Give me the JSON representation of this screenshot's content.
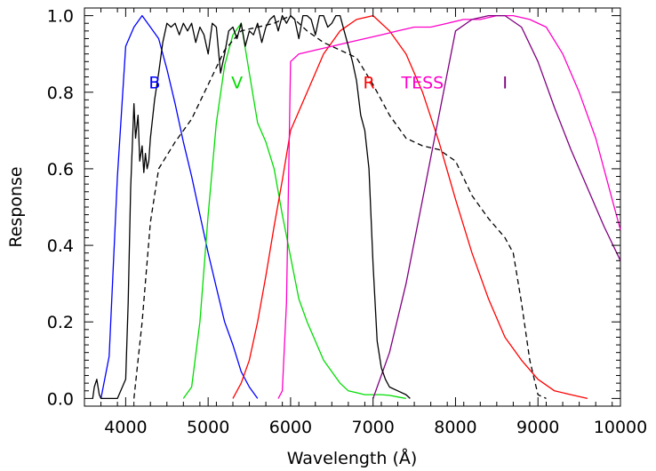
{
  "chart_data": {
    "type": "line",
    "xlabel": "Wavelength (Å)",
    "ylabel": "Response",
    "xlim": [
      3500,
      10000
    ],
    "ylim": [
      -0.02,
      1.02
    ],
    "x_ticks": [
      4000,
      5000,
      6000,
      7000,
      8000,
      9000,
      10000
    ],
    "y_ticks": [
      0.0,
      0.2,
      0.4,
      0.6,
      0.8,
      1.0
    ],
    "x_tick_labels": [
      "4000",
      "5000",
      "6000",
      "7000",
      "8000",
      "9000",
      "10000"
    ],
    "y_tick_labels": [
      "0.0",
      "0.2",
      "0.4",
      "0.6",
      "0.8",
      "1.0"
    ],
    "grid": false,
    "series": [
      {
        "name": "B",
        "color": "#0000ff",
        "dash": "solid",
        "x": [
          3700,
          3800,
          3900,
          4000,
          4100,
          4200,
          4300,
          4400,
          4500,
          4600,
          4700,
          4800,
          4900,
          5000,
          5100,
          5200,
          5300,
          5400,
          5500,
          5600
        ],
        "y": [
          0.0,
          0.11,
          0.58,
          0.92,
          0.97,
          1.0,
          0.97,
          0.94,
          0.86,
          0.77,
          0.67,
          0.58,
          0.48,
          0.38,
          0.29,
          0.2,
          0.14,
          0.07,
          0.03,
          0.0
        ]
      },
      {
        "name": "V",
        "color": "#00dd00",
        "dash": "solid",
        "x": [
          4700,
          4800,
          4900,
          5000,
          5100,
          5200,
          5300,
          5400,
          5500,
          5600,
          5700,
          5800,
          5900,
          6000,
          6100,
          6200,
          6300,
          6400,
          6500,
          6600,
          6700,
          6800,
          6900,
          7000,
          7100,
          7200,
          7300,
          7400
        ],
        "y": [
          0.0,
          0.03,
          0.2,
          0.48,
          0.72,
          0.87,
          0.95,
          0.98,
          0.85,
          0.72,
          0.67,
          0.6,
          0.48,
          0.37,
          0.26,
          0.2,
          0.15,
          0.1,
          0.07,
          0.04,
          0.02,
          0.015,
          0.01,
          0.01,
          0.01,
          0.008,
          0.004,
          0.0
        ]
      },
      {
        "name": "R",
        "color": "#ff0000",
        "dash": "solid",
        "x": [
          5300,
          5400,
          5500,
          5600,
          5700,
          5800,
          5900,
          6000,
          6200,
          6400,
          6600,
          6800,
          7000,
          7200,
          7400,
          7600,
          7800,
          8000,
          8200,
          8400,
          8600,
          8800,
          9000,
          9200,
          9400,
          9600
        ],
        "y": [
          0.0,
          0.04,
          0.1,
          0.2,
          0.32,
          0.45,
          0.57,
          0.7,
          0.8,
          0.9,
          0.96,
          0.99,
          1.0,
          0.96,
          0.9,
          0.8,
          0.67,
          0.52,
          0.38,
          0.26,
          0.16,
          0.1,
          0.05,
          0.02,
          0.01,
          0.0
        ]
      },
      {
        "name": "TESS",
        "color": "#ff00c8",
        "dash": "solid",
        "x": [
          5850,
          5900,
          5950,
          6000,
          6050,
          6100,
          6300,
          6500,
          6700,
          6900,
          7100,
          7300,
          7500,
          7700,
          7900,
          8100,
          8300,
          8500,
          8700,
          8900,
          9100,
          9300,
          9500,
          9700,
          9900,
          10000
        ],
        "y": [
          0.0,
          0.02,
          0.25,
          0.88,
          0.89,
          0.9,
          0.91,
          0.92,
          0.93,
          0.94,
          0.95,
          0.96,
          0.97,
          0.97,
          0.98,
          0.99,
          0.99,
          1.0,
          1.0,
          0.99,
          0.97,
          0.9,
          0.8,
          0.68,
          0.52,
          0.44
        ]
      },
      {
        "name": "I",
        "color": "#800080",
        "dash": "solid",
        "x": [
          7000,
          7200,
          7400,
          7600,
          7800,
          8000,
          8200,
          8400,
          8600,
          8800,
          9000,
          9200,
          9400,
          9600,
          9800,
          10000
        ],
        "y": [
          0.0,
          0.12,
          0.3,
          0.52,
          0.74,
          0.96,
          0.99,
          1.0,
          1.0,
          0.97,
          0.88,
          0.76,
          0.65,
          0.55,
          0.45,
          0.36
        ]
      },
      {
        "color": "#000000",
        "dash": "dash",
        "x": [
          4100,
          4200,
          4300,
          4400,
          4600,
          4800,
          5000,
          5200,
          5400,
          5600,
          5800,
          6000,
          6200,
          6400,
          6600,
          6800,
          7000,
          7200,
          7400,
          7600,
          7800,
          8000,
          8200,
          8400,
          8600,
          8700,
          8800,
          8900,
          9000,
          9100
        ],
        "y": [
          0.0,
          0.2,
          0.46,
          0.6,
          0.67,
          0.73,
          0.82,
          0.91,
          0.96,
          0.97,
          0.98,
          1.0,
          0.96,
          0.93,
          0.91,
          0.89,
          0.82,
          0.74,
          0.68,
          0.66,
          0.65,
          0.62,
          0.53,
          0.47,
          0.42,
          0.38,
          0.25,
          0.1,
          0.01,
          0.0
        ]
      },
      {
        "color": "#000000",
        "dash": "solid",
        "x": [
          3600,
          3620,
          3650,
          3680,
          3700,
          3900,
          4000,
          4030,
          4060,
          4100,
          4120,
          4150,
          4170,
          4200,
          4220,
          4240,
          4260,
          4280,
          4300,
          4320,
          4350,
          4400,
          4450,
          4500,
          4550,
          4600,
          4650,
          4700,
          4750,
          4800,
          4850,
          4900,
          4950,
          5000,
          5050,
          5100,
          5150,
          5200,
          5250,
          5300,
          5350,
          5400,
          5450,
          5500,
          5550,
          5600,
          5650,
          5700,
          5750,
          5800,
          5850,
          5900,
          5950,
          6000,
          6050,
          6100,
          6150,
          6200,
          6250,
          6300,
          6350,
          6400,
          6450,
          6500,
          6550,
          6600,
          6650,
          6700,
          6750,
          6800,
          6850,
          6900,
          6950,
          7000,
          7050,
          7100,
          7150,
          7200,
          7300,
          7400,
          7450
        ],
        "y": [
          0.0,
          0.03,
          0.05,
          0.01,
          0.0,
          0.0,
          0.05,
          0.25,
          0.55,
          0.77,
          0.68,
          0.74,
          0.62,
          0.66,
          0.59,
          0.64,
          0.6,
          0.62,
          0.68,
          0.72,
          0.78,
          0.85,
          0.93,
          0.98,
          0.97,
          0.98,
          0.95,
          0.98,
          0.96,
          0.98,
          0.93,
          0.97,
          0.95,
          0.9,
          0.98,
          0.97,
          0.85,
          0.9,
          0.96,
          0.97,
          0.94,
          0.98,
          0.92,
          0.96,
          0.95,
          0.98,
          0.93,
          0.97,
          0.99,
          1.0,
          0.96,
          1.0,
          0.98,
          1.0,
          0.99,
          0.94,
          1.0,
          1.0,
          0.99,
          0.95,
          1.0,
          1.0,
          0.97,
          0.98,
          1.0,
          1.0,
          0.96,
          0.92,
          0.88,
          0.83,
          0.74,
          0.7,
          0.6,
          0.35,
          0.15,
          0.08,
          0.05,
          0.03,
          0.02,
          0.01,
          0.0
        ]
      }
    ],
    "band_labels": [
      {
        "text": "B",
        "x": 4350,
        "y": 0.81,
        "color": "#0000ff"
      },
      {
        "text": "V",
        "x": 5350,
        "y": 0.81,
        "color": "#00dd00"
      },
      {
        "text": "R",
        "x": 6950,
        "y": 0.81,
        "color": "#ff0000"
      },
      {
        "text": "TESS",
        "x": 7600,
        "y": 0.81,
        "color": "#ff00c8"
      },
      {
        "text": "I",
        "x": 8600,
        "y": 0.81,
        "color": "#800080"
      }
    ]
  }
}
